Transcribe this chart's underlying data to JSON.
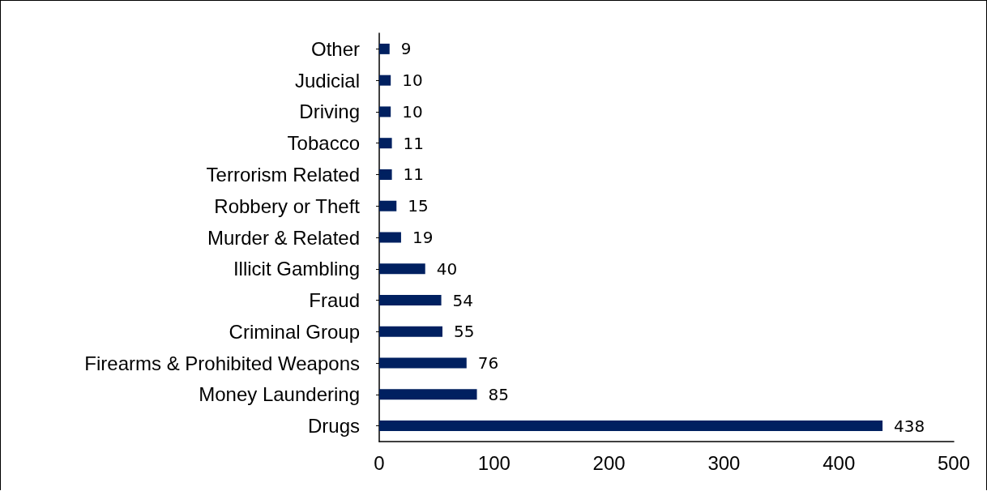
{
  "chart_data": {
    "type": "bar",
    "orientation": "horizontal",
    "categories": [
      "Other",
      "Judicial",
      "Driving",
      "Tobacco",
      "Terrorism Related",
      "Robbery or Theft",
      "Murder & Related",
      "Illicit Gambling",
      "Fraud",
      "Criminal Group",
      "Firearms & Prohibited Weapons",
      "Money Laundering",
      "Drugs"
    ],
    "values": [
      9,
      10,
      10,
      11,
      11,
      15,
      19,
      40,
      54,
      55,
      76,
      85,
      438
    ],
    "color": "#002060",
    "xlim": [
      0,
      500
    ],
    "xticks": [
      0,
      100,
      200,
      300,
      400,
      500
    ],
    "grid": false,
    "data_labels": true
  }
}
